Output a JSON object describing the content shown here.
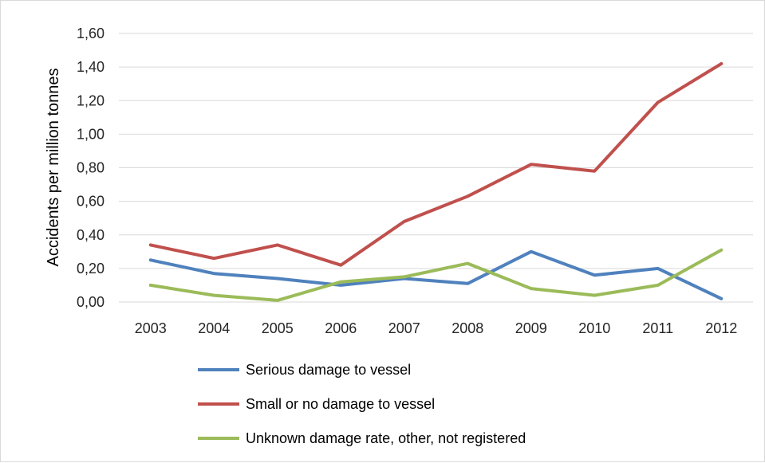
{
  "chart_data": {
    "type": "line",
    "title": "",
    "xlabel": "",
    "ylabel": "Accidents per million tonnes",
    "categories": [
      "2003",
      "2004",
      "2005",
      "2006",
      "2007",
      "2008",
      "2009",
      "2010",
      "2011",
      "2012"
    ],
    "ylim": [
      0,
      1.6
    ],
    "yticks": [
      "0,00",
      "0,20",
      "0,40",
      "0,60",
      "0,80",
      "1,00",
      "1,20",
      "1,40",
      "1,60"
    ],
    "grid": true,
    "legend_position": "bottom",
    "series": [
      {
        "name": "Serious damage to vessel",
        "color": "#4f81bd",
        "values": [
          0.25,
          0.17,
          0.14,
          0.1,
          0.14,
          0.11,
          0.3,
          0.16,
          0.2,
          0.02
        ]
      },
      {
        "name": "Small or no damage to vessel",
        "color": "#c0504d",
        "values": [
          0.34,
          0.26,
          0.34,
          0.22,
          0.48,
          0.63,
          0.82,
          0.78,
          1.19,
          1.42
        ]
      },
      {
        "name": "Unknown damage rate, other, not registered",
        "color": "#9bbb59",
        "values": [
          0.1,
          0.04,
          0.01,
          0.12,
          0.15,
          0.23,
          0.08,
          0.04,
          0.1,
          0.31
        ]
      }
    ]
  }
}
